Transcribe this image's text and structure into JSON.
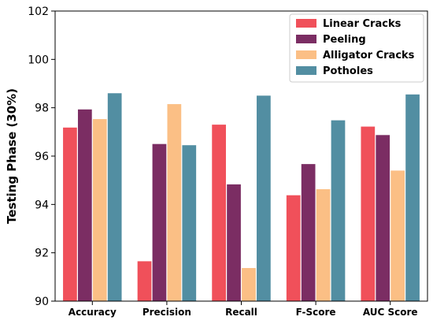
{
  "chart_data": {
    "type": "bar",
    "title": "",
    "xlabel": "",
    "ylabel": "Testing Phase (30%)",
    "ylim": [
      90,
      102
    ],
    "yticks": [
      90,
      92,
      94,
      96,
      98,
      100,
      102
    ],
    "grid": false,
    "legend_position": "top-right",
    "categories": [
      "Accuracy",
      "Precision",
      "Recall",
      "F-Score",
      "AUC Score"
    ],
    "series": [
      {
        "name": "Linear Cracks",
        "color": "#f0505a",
        "values": [
          97.18,
          91.65,
          97.3,
          94.38,
          97.22
        ]
      },
      {
        "name": "Peeling",
        "color": "#7b2d63",
        "values": [
          97.93,
          96.5,
          94.83,
          95.67,
          96.87
        ]
      },
      {
        "name": "Alligator Cracks",
        "color": "#fbbf85",
        "values": [
          97.53,
          98.15,
          91.37,
          94.63,
          95.4
        ]
      },
      {
        "name": "Potholes",
        "color": "#528ea2",
        "values": [
          98.6,
          96.45,
          98.5,
          97.48,
          98.55
        ]
      }
    ]
  }
}
